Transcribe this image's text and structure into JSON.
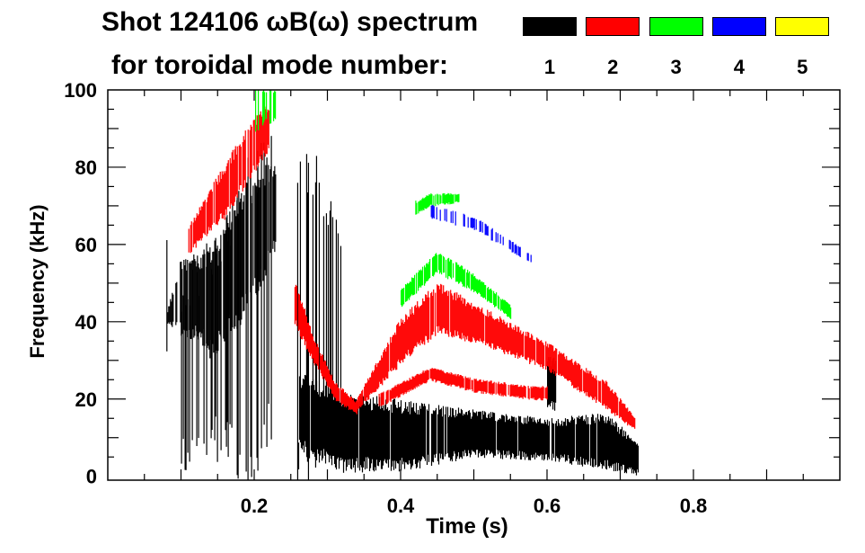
{
  "header": {
    "title": "Shot 124106 ωB(ω) spectrum",
    "legend_caption": "for toroidal mode number:"
  },
  "legend": [
    {
      "label": "1",
      "color": "#000000"
    },
    {
      "label": "2",
      "color": "#ff0000"
    },
    {
      "label": "3",
      "color": "#00ff00"
    },
    {
      "label": "4",
      "color": "#0000ff"
    },
    {
      "label": "5",
      "color": "#ffff00"
    }
  ],
  "chart_data": {
    "type": "heatmap",
    "title": "Shot 124106 ωB(ω) spectrum",
    "xlabel": "Time (s)",
    "ylabel": "Frequency (kHz)",
    "xlim": [
      0,
      1.0
    ],
    "ylim": [
      -1,
      100
    ],
    "xticks": [
      {
        "v": 0.2,
        "label": "0.2"
      },
      {
        "v": 0.4,
        "label": "0.4"
      },
      {
        "v": 0.6,
        "label": "0.6"
      },
      {
        "v": 0.8,
        "label": "0.8"
      }
    ],
    "yticks": [
      {
        "v": 0,
        "label": "0"
      },
      {
        "v": 20,
        "label": "20"
      },
      {
        "v": 40,
        "label": "40"
      },
      {
        "v": 60,
        "label": "60"
      },
      {
        "v": 80,
        "label": "80"
      },
      {
        "v": 100,
        "label": "100"
      }
    ],
    "features": [
      {
        "mode": 1,
        "t": [
          0.08,
          0.1,
          0.13,
          0.15
        ],
        "lo": [
          40,
          38,
          36,
          30
        ],
        "hi": [
          42,
          55,
          56,
          58
        ],
        "density": 0.9
      },
      {
        "mode": 1,
        "t": [
          0.1,
          0.15,
          0.2,
          0.23
        ],
        "lo": [
          5,
          10,
          5,
          15
        ],
        "hi": [
          45,
          60,
          80,
          85
        ],
        "density": 0.35
      },
      {
        "mode": 1,
        "t": [
          0.15,
          0.19,
          0.23
        ],
        "lo": [
          35,
          45,
          60
        ],
        "hi": [
          60,
          75,
          80
        ],
        "density": 0.8
      },
      {
        "mode": 1,
        "t": [
          0.255,
          0.29,
          0.32
        ],
        "lo": [
          5,
          10,
          15
        ],
        "hi": [
          80,
          75,
          55
        ],
        "density": 0.3
      },
      {
        "mode": 1,
        "t": [
          0.26,
          0.32,
          0.4,
          0.5,
          0.6,
          0.68,
          0.725
        ],
        "lo": [
          8,
          3,
          3,
          6,
          5,
          3,
          1
        ],
        "hi": [
          25,
          20,
          18,
          16,
          14,
          15,
          8
        ],
        "density": 0.95
      },
      {
        "mode": 1,
        "t": [
          0.6,
          0.612
        ],
        "lo": [
          18,
          18
        ],
        "hi": [
          30,
          30
        ],
        "density": 0.9
      },
      {
        "mode": 2,
        "t": [
          0.11,
          0.16,
          0.2,
          0.22
        ],
        "lo": [
          58,
          68,
          80,
          85
        ],
        "hi": [
          64,
          80,
          92,
          96
        ],
        "density": 0.85
      },
      {
        "mode": 2,
        "t": [
          0.255,
          0.28,
          0.31,
          0.34
        ],
        "lo": [
          40,
          30,
          20,
          16
        ],
        "hi": [
          50,
          36,
          24,
          19
        ],
        "density": 0.9
      },
      {
        "mode": 2,
        "t": [
          0.34,
          0.4,
          0.45,
          0.52,
          0.6,
          0.68,
          0.72
        ],
        "lo": [
          17,
          30,
          38,
          34,
          28,
          18,
          12
        ],
        "hi": [
          20,
          40,
          49,
          42,
          34,
          24,
          15
        ],
        "density": 0.95
      },
      {
        "mode": 2,
        "t": [
          0.37,
          0.44,
          0.5,
          0.58,
          0.6
        ],
        "lo": [
          18,
          25,
          22,
          20,
          20
        ],
        "hi": [
          21,
          28,
          25,
          23,
          23
        ],
        "density": 0.9
      },
      {
        "mode": 3,
        "t": [
          0.4,
          0.45,
          0.5,
          0.55
        ],
        "lo": [
          44,
          53,
          48,
          41
        ],
        "hi": [
          48,
          58,
          52,
          44
        ],
        "density": 0.85
      },
      {
        "mode": 3,
        "t": [
          0.42,
          0.44,
          0.48
        ],
        "lo": [
          68,
          70,
          71
        ],
        "hi": [
          71,
          73,
          73
        ],
        "density": 0.8
      },
      {
        "mode": 3,
        "t": [
          0.2,
          0.23
        ],
        "lo": [
          90,
          93
        ],
        "hi": [
          100,
          100
        ],
        "density": 0.3
      },
      {
        "mode": 4,
        "t": [
          0.44,
          0.5,
          0.58
        ],
        "lo": [
          67,
          64,
          55
        ],
        "hi": [
          70,
          67,
          57
        ],
        "density": 0.4
      }
    ]
  }
}
